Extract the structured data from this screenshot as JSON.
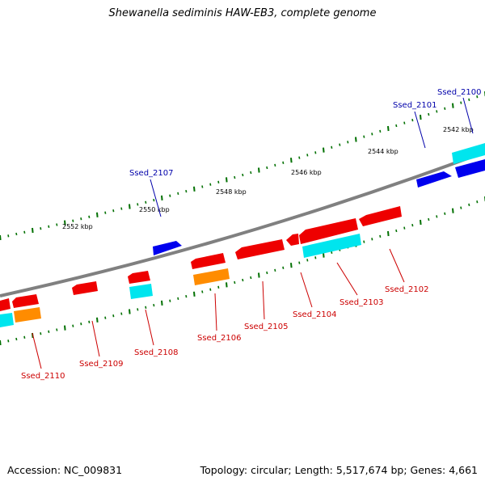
{
  "title": "Shewanella sediminis HAW-EB3, complete genome",
  "footer": {
    "accession": "Accession: NC_009831",
    "topology": "Topology: circular; Length: 5,517,674 bp; Genes: 4,661"
  },
  "colors": {
    "backbone": "#808080",
    "forward_cds": "#0000ee",
    "reverse_cds": "#ee0000",
    "cyan_feature": "#00e5ee",
    "orange_feature": "#ff8c00",
    "tick": "#007000",
    "forward_label": "#0000aa",
    "reverse_label": "#cc0000"
  },
  "scale_labels": [
    "2542 kbp",
    "2544 kbp",
    "2546 kbp",
    "2548 kbp",
    "2550 kbp",
    "2552 kbp"
  ],
  "gene_labels": {
    "forward": [
      "Ssed_2100",
      "Ssed_2101",
      "Ssed_2107"
    ],
    "reverse": [
      "Ssed_2102",
      "Ssed_2103",
      "Ssed_2104",
      "Ssed_2105",
      "Ssed_2106",
      "Ssed_2108",
      "Ssed_2109",
      "Ssed_2110"
    ]
  }
}
